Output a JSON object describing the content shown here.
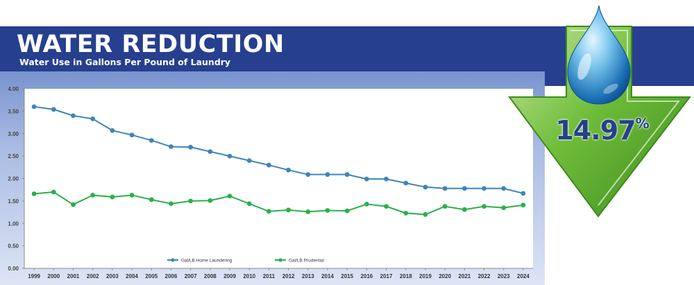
{
  "header": {
    "title": "WATER REDUCTION",
    "subtitle": "Water Use in Gallons Per Pound of Laundry"
  },
  "badge": {
    "value": "14.97",
    "percent_sign": "%"
  },
  "colors": {
    "banner": "#263f8e",
    "home_series": "#3f85b8",
    "prudential_series": "#2ab04a",
    "arrow_green": "#67b534",
    "badge_text": "#263f8e"
  },
  "icons": {
    "drop": "water-drop-icon",
    "arrow": "down-arrow-icon"
  },
  "chart_data": {
    "type": "line",
    "title": "",
    "xlabel": "",
    "ylabel": "",
    "ylim": [
      0,
      4
    ],
    "yticks": [
      "0.00",
      "0.50",
      "1.00",
      "1.50",
      "2.00",
      "2.50",
      "3.00",
      "3.50",
      "4.00"
    ],
    "grid": false,
    "legend_position": "bottom",
    "categories": [
      "1999",
      "2000",
      "2001",
      "2002",
      "2003",
      "2004",
      "2005",
      "2006",
      "2007",
      "2008",
      "2009",
      "2010",
      "2011",
      "2012",
      "2013",
      "2014",
      "2015",
      "2016",
      "2017",
      "2018",
      "2019",
      "2020",
      "2021",
      "2022",
      "2023",
      "2024"
    ],
    "series": [
      {
        "name": "Gal/LB Home Laundering",
        "color": "#3f85b8",
        "values": [
          3.6,
          3.54,
          3.4,
          3.33,
          3.07,
          2.97,
          2.85,
          2.71,
          2.7,
          2.6,
          2.5,
          2.4,
          2.3,
          2.19,
          2.09,
          2.09,
          2.09,
          1.99,
          1.99,
          1.9,
          1.81,
          1.78,
          1.78,
          1.78,
          1.78,
          1.67
        ]
      },
      {
        "name": "Gal/LB Prudential",
        "color": "#2ab04a",
        "values": [
          1.66,
          1.7,
          1.42,
          1.63,
          1.59,
          1.63,
          1.53,
          1.44,
          1.5,
          1.51,
          1.61,
          1.44,
          1.27,
          1.3,
          1.26,
          1.29,
          1.28,
          1.43,
          1.38,
          1.23,
          1.2,
          1.38,
          1.31,
          1.38,
          1.35,
          1.41
        ]
      }
    ]
  }
}
